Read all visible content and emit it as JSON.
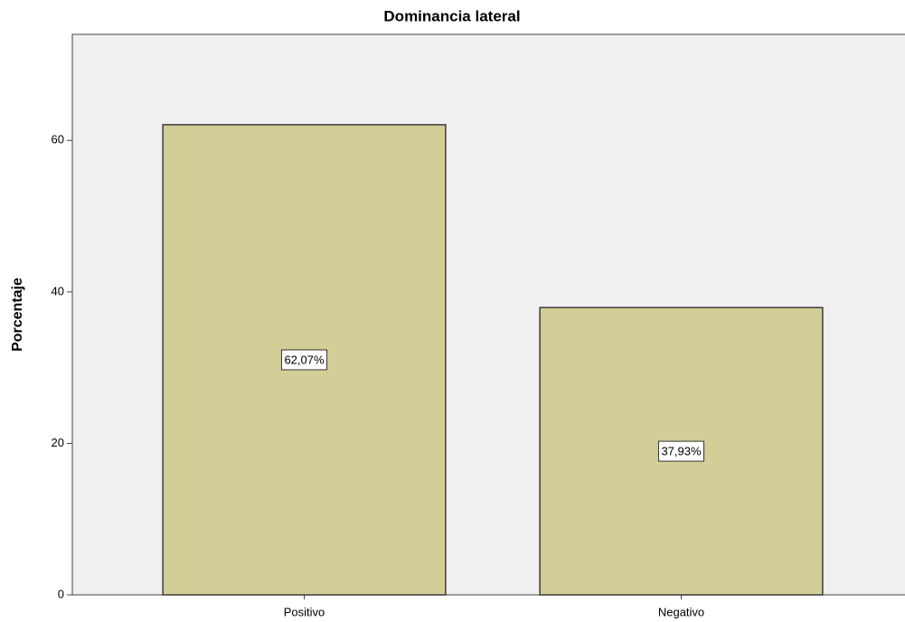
{
  "chart_data": {
    "type": "bar",
    "title": "Dominancia lateral",
    "y_label": "Porcentaje",
    "categories": [
      "Positivo",
      "Negativo"
    ],
    "values": [
      62.07,
      37.93
    ],
    "value_labels": [
      "62,07%",
      "37,93%"
    ],
    "color": "#d3cd97",
    "ylim": [
      0,
      74
    ],
    "yticks": [
      0,
      20,
      40,
      60
    ],
    "grid": false
  }
}
